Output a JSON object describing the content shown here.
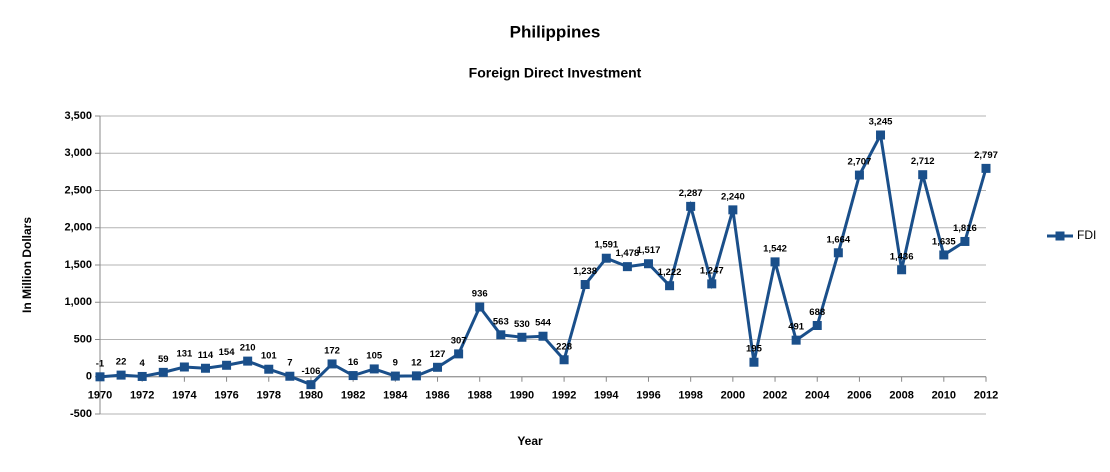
{
  "chart_data": {
    "type": "line",
    "title": "Philippines",
    "subtitle": "Foreign Direct Investment",
    "x_label": "Year",
    "y_label": "In Million Dollars",
    "x": [
      1970,
      1971,
      1972,
      1973,
      1974,
      1975,
      1976,
      1977,
      1978,
      1979,
      1980,
      1981,
      1982,
      1983,
      1984,
      1985,
      1986,
      1987,
      1988,
      1989,
      1990,
      1991,
      1992,
      1993,
      1994,
      1995,
      1996,
      1997,
      1998,
      1999,
      2000,
      2001,
      2002,
      2003,
      2004,
      2005,
      2006,
      2007,
      2008,
      2009,
      2010,
      2011,
      2012
    ],
    "series": [
      {
        "name": "FDI",
        "color": "#1a4f8a",
        "values": [
          -1,
          22,
          4,
          59,
          131,
          114,
          154,
          210,
          101,
          7,
          -106,
          172,
          16,
          105,
          9,
          12,
          127,
          307,
          936,
          563,
          530,
          544,
          228,
          1238,
          1591,
          1478,
          1517,
          1222,
          2287,
          1247,
          2240,
          195,
          1542,
          491,
          688,
          1664,
          2707,
          3245,
          1436,
          2712,
          1635,
          1816,
          2797
        ],
        "value_labels": [
          "-1",
          "22",
          "4",
          "59",
          "131",
          "114",
          "154",
          "210",
          "101",
          "7",
          "-106",
          "172",
          "16",
          "105",
          "9",
          "12",
          "127",
          "307",
          "936",
          "563",
          "530",
          "544",
          "228",
          "1,238",
          "1,591",
          "1,478",
          "1,517",
          "1,222",
          "2,287",
          "1,247",
          "2,240",
          "195",
          "1,542",
          "491",
          "688",
          "1,664",
          "2,707",
          "3,245",
          "1,436",
          "2,712",
          "1,635",
          "1,816",
          "2,797"
        ]
      }
    ],
    "xlim": [
      1970,
      2012
    ],
    "xticks": [
      1970,
      1972,
      1974,
      1976,
      1978,
      1980,
      1982,
      1984,
      1986,
      1988,
      1990,
      1992,
      1994,
      1996,
      1998,
      2000,
      2002,
      2004,
      2006,
      2008,
      2010,
      2012
    ],
    "ylim": [
      -500,
      3500
    ],
    "yticks": [
      -500,
      0,
      500,
      {
        "value": 1000,
        "label": "1,000"
      },
      {
        "value": 1500,
        "label": "1,500"
      },
      {
        "value": 2000,
        "label": "2,000"
      },
      {
        "value": 2500,
        "label": "2,500"
      },
      {
        "value": 3000,
        "label": "3,000"
      },
      {
        "value": 3500,
        "label": "3,500"
      }
    ],
    "grid": true,
    "legend": "right"
  }
}
